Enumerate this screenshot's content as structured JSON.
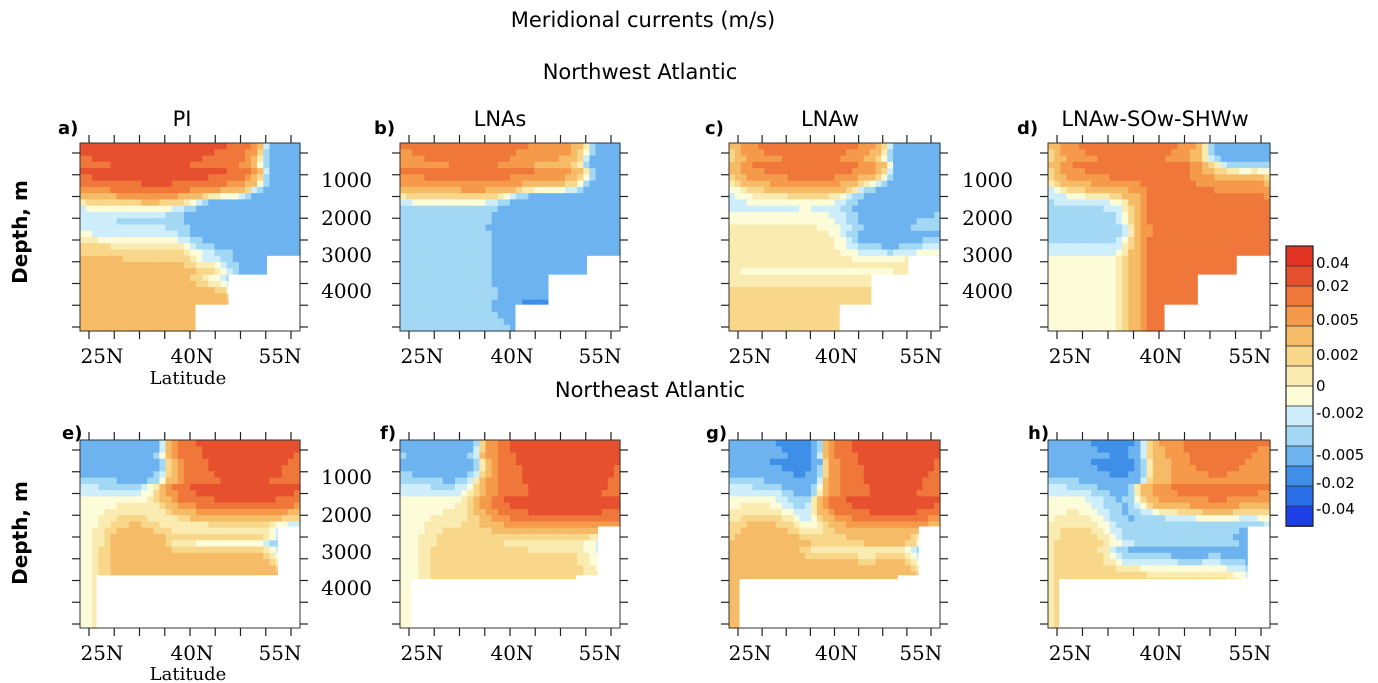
{
  "figure": {
    "title": "Meridional currents (m/s)",
    "region_titles": [
      "Northwest Atlantic",
      "Northeast Atlantic"
    ],
    "ylabel": "Depth, m",
    "xlabel": "Latitude"
  },
  "colors": {
    "scale": [
      "#1c3fe8",
      "#2a6fe8",
      "#3f8ee8",
      "#6cb3f0",
      "#a3d8f5",
      "#cdeefa",
      "#fcfcd8",
      "#faecb0",
      "#f8d78a",
      "#f6bb66",
      "#f59a4a",
      "#f0773a",
      "#e6502e",
      "#e13322"
    ]
  },
  "colorbar": {
    "labels": [
      "0.04",
      "0.02",
      "0.005",
      "0.002",
      "0",
      "-0.002",
      "-0.005",
      "-0.02",
      "-0.04"
    ]
  },
  "chart_data": [
    {
      "type": "heatmap",
      "panel": "a)",
      "title": "PI",
      "region": "Northwest Atlantic",
      "x_ticks": [
        "25N",
        "40N",
        "55N"
      ],
      "y_ticks": [],
      "xlabel": "Latitude",
      "ylabel": "Depth, m",
      "x_range_deg": [
        20,
        60
      ],
      "y_range_m": [
        0,
        5000
      ],
      "mask": [
        [
          41,
          4300
        ],
        [
          47,
          3500
        ],
        [
          54,
          3000
        ]
      ],
      "features": [
        {
          "kind": "surface_flow",
          "sign": "positive",
          "x": [
            20,
            48
          ],
          "depth_max": 600,
          "peak": 0.04
        },
        {
          "kind": "slope_current",
          "sign": "negative",
          "x": [
            44,
            60
          ],
          "depth_max": 3500,
          "peak": -0.005
        },
        {
          "kind": "interior",
          "sign": "negative",
          "x": [
            20,
            44
          ],
          "depth_max": 3000,
          "peak": -0.002
        },
        {
          "kind": "deep",
          "sign": "positive",
          "x": [
            20,
            44
          ],
          "depth_min": 3500,
          "peak": 0.005
        }
      ]
    },
    {
      "type": "heatmap",
      "panel": "b)",
      "title": "LNAs",
      "region": "Northwest Atlantic",
      "x_ticks": [
        "25N",
        "40N",
        "55N"
      ],
      "y_ticks": [
        "1000",
        "2000",
        "3000",
        "4000"
      ],
      "x_range_deg": [
        20,
        60
      ],
      "y_range_m": [
        0,
        5000
      ],
      "mask": [
        [
          41,
          4300
        ],
        [
          47,
          3500
        ],
        [
          54,
          3000
        ]
      ],
      "features": [
        {
          "kind": "surface_flow",
          "sign": "positive",
          "x": [
            20,
            50
          ],
          "depth_max": 600,
          "peak": 0.02
        },
        {
          "kind": "slope_current",
          "sign": "negative",
          "x": [
            43,
            60
          ],
          "depth_max": 4200,
          "peak": -0.005
        },
        {
          "kind": "interior",
          "sign": "negative",
          "x": [
            20,
            43
          ],
          "depth_max": 5000,
          "peak": -0.002
        }
      ]
    },
    {
      "type": "heatmap",
      "panel": "c)",
      "title": "LNAw",
      "region": "Northwest Atlantic",
      "x_ticks": [
        "25N",
        "40N",
        "55N"
      ],
      "y_ticks": [],
      "x_range_deg": [
        20,
        60
      ],
      "y_range_m": [
        0,
        5000
      ],
      "mask": [
        [
          41,
          4300
        ],
        [
          47,
          3500
        ],
        [
          54,
          3000
        ]
      ],
      "features": [
        {
          "kind": "surface_flow",
          "sign": "positive",
          "x": [
            25,
            47
          ],
          "depth_max": 500,
          "peak": 0.02
        },
        {
          "kind": "slope_current",
          "sign": "negative",
          "x": [
            47,
            60
          ],
          "depth_max": 2300,
          "peak": -0.005
        },
        {
          "kind": "interior",
          "sign": "negative",
          "x": [
            20,
            50
          ],
          "depth_max": 3300,
          "peak": -0.002
        },
        {
          "kind": "deep",
          "sign": "positive",
          "x": [
            20,
            60
          ],
          "depth_min": 2500,
          "peak": 0.002
        }
      ]
    },
    {
      "type": "heatmap",
      "panel": "d)",
      "title": "LNAw-SOw-SHWw",
      "region": "Northwest Atlantic",
      "x_ticks": [
        "25N",
        "40N",
        "55N"
      ],
      "y_ticks": [
        "1000",
        "2000",
        "3000",
        "4000"
      ],
      "x_range_deg": [
        20,
        60
      ],
      "y_range_m": [
        0,
        5000
      ],
      "mask": [
        [
          41,
          4300
        ],
        [
          47,
          3500
        ],
        [
          54,
          3000
        ]
      ],
      "features": [
        {
          "kind": "surface_flow",
          "sign": "positive",
          "x": [
            25,
            45
          ],
          "depth_max": 500,
          "peak": 0.02
        },
        {
          "kind": "slope_current",
          "sign": "negative",
          "x": [
            47,
            60
          ],
          "depth_max": 1700,
          "peak": -0.005
        },
        {
          "kind": "interior",
          "sign": "negative",
          "x": [
            20,
            45
          ],
          "depth_max": 2200,
          "peak": -0.002
        },
        {
          "kind": "deep",
          "sign": "positive",
          "x": [
            42,
            57
          ],
          "depth_min": 1800,
          "peak": 0.02
        }
      ]
    },
    {
      "type": "heatmap",
      "panel": "e)",
      "title": "",
      "region": "Northeast Atlantic",
      "x_ticks": [
        "25N",
        "40N",
        "55N"
      ],
      "y_ticks": [],
      "xlabel": "Latitude",
      "ylabel": "Depth, m",
      "x_range_deg": [
        20,
        60
      ],
      "y_range_m": [
        0,
        5000
      ],
      "mask": [
        [
          23,
          3600
        ],
        [
          52,
          3600
        ],
        [
          56,
          2300
        ]
      ],
      "features": [
        {
          "kind": "surface_flow",
          "sign": "negative",
          "x": [
            20,
            40
          ],
          "depth_max": 500,
          "peak": -0.005
        },
        {
          "kind": "surface_flow",
          "sign": "positive",
          "x": [
            40,
            60
          ],
          "depth_max": 1200,
          "peak": 0.04
        },
        {
          "kind": "interior",
          "sign": "negative",
          "x": [
            38,
            58
          ],
          "depth_max": 2600,
          "peak": -0.005
        },
        {
          "kind": "deep",
          "sign": "positive",
          "x": [
            30,
            52
          ],
          "depth_min": 3000,
          "peak": 0.005
        }
      ]
    },
    {
      "type": "heatmap",
      "panel": "f)",
      "title": "",
      "region": "Northeast Atlantic",
      "x_ticks": [
        "25N",
        "40N",
        "55N"
      ],
      "y_ticks": [
        "1000",
        "2000",
        "3000",
        "4000"
      ],
      "x_range_deg": [
        20,
        60
      ],
      "y_range_m": [
        0,
        5000
      ],
      "mask": [
        [
          22,
          3700
        ],
        [
          52,
          3600
        ],
        [
          56,
          2300
        ]
      ],
      "features": [
        {
          "kind": "surface_flow",
          "sign": "negative",
          "x": [
            22,
            40
          ],
          "depth_max": 500,
          "peak": -0.005
        },
        {
          "kind": "surface_flow",
          "sign": "positive",
          "x": [
            40,
            60
          ],
          "depth_max": 1500,
          "peak": 0.04
        },
        {
          "kind": "interior",
          "sign": "negative",
          "x": [
            40,
            58
          ],
          "depth_max": 2500,
          "peak": -0.002
        },
        {
          "kind": "deep",
          "sign": "positive",
          "x": [
            30,
            50
          ],
          "depth_min": 3000,
          "peak": 0.002
        }
      ]
    },
    {
      "type": "heatmap",
      "panel": "g)",
      "title": "",
      "region": "Northeast Atlantic",
      "x_ticks": [
        "25N",
        "40N",
        "55N"
      ],
      "y_ticks": [],
      "x_range_deg": [
        20,
        60
      ],
      "y_range_m": [
        0,
        5000
      ],
      "mask": [
        [
          22,
          3700
        ],
        [
          52,
          3600
        ],
        [
          56,
          2300
        ]
      ],
      "features": [
        {
          "kind": "surface_flow",
          "sign": "negative",
          "x": [
            20,
            42
          ],
          "depth_max": 500,
          "peak": -0.005
        },
        {
          "kind": "surface_flow",
          "sign": "positive",
          "x": [
            42,
            60
          ],
          "depth_max": 1500,
          "peak": 0.04
        },
        {
          "kind": "interior",
          "sign": "negative",
          "x": [
            36,
            57
          ],
          "depth_max": 2800,
          "peak": -0.005
        },
        {
          "kind": "deep",
          "sign": "positive",
          "x": [
            25,
            52
          ],
          "depth_min": 3000,
          "peak": 0.005
        }
      ]
    },
    {
      "type": "heatmap",
      "panel": "h)",
      "title": "",
      "region": "Northeast Atlantic",
      "x_ticks": [
        "25N",
        "40N",
        "55N"
      ],
      "y_ticks": [],
      "x_range_deg": [
        20,
        60
      ],
      "y_range_m": [
        0,
        5000
      ],
      "mask": [
        [
          22,
          3700
        ],
        [
          56,
          2300
        ]
      ],
      "features": [
        {
          "kind": "surface_flow",
          "sign": "negative",
          "x": [
            20,
            40
          ],
          "depth_max": 500,
          "peak": -0.005
        },
        {
          "kind": "surface_flow",
          "sign": "positive",
          "x": [
            40,
            60
          ],
          "depth_max": 1200,
          "peak": 0.02
        },
        {
          "kind": "interior",
          "sign": "negative",
          "x": [
            35,
            56
          ],
          "depth_max": 2800,
          "peak": -0.005
        },
        {
          "kind": "deep",
          "sign": "positive",
          "x": [
            25,
            50
          ],
          "depth_min": 3000,
          "peak": 0.002
        }
      ]
    }
  ]
}
